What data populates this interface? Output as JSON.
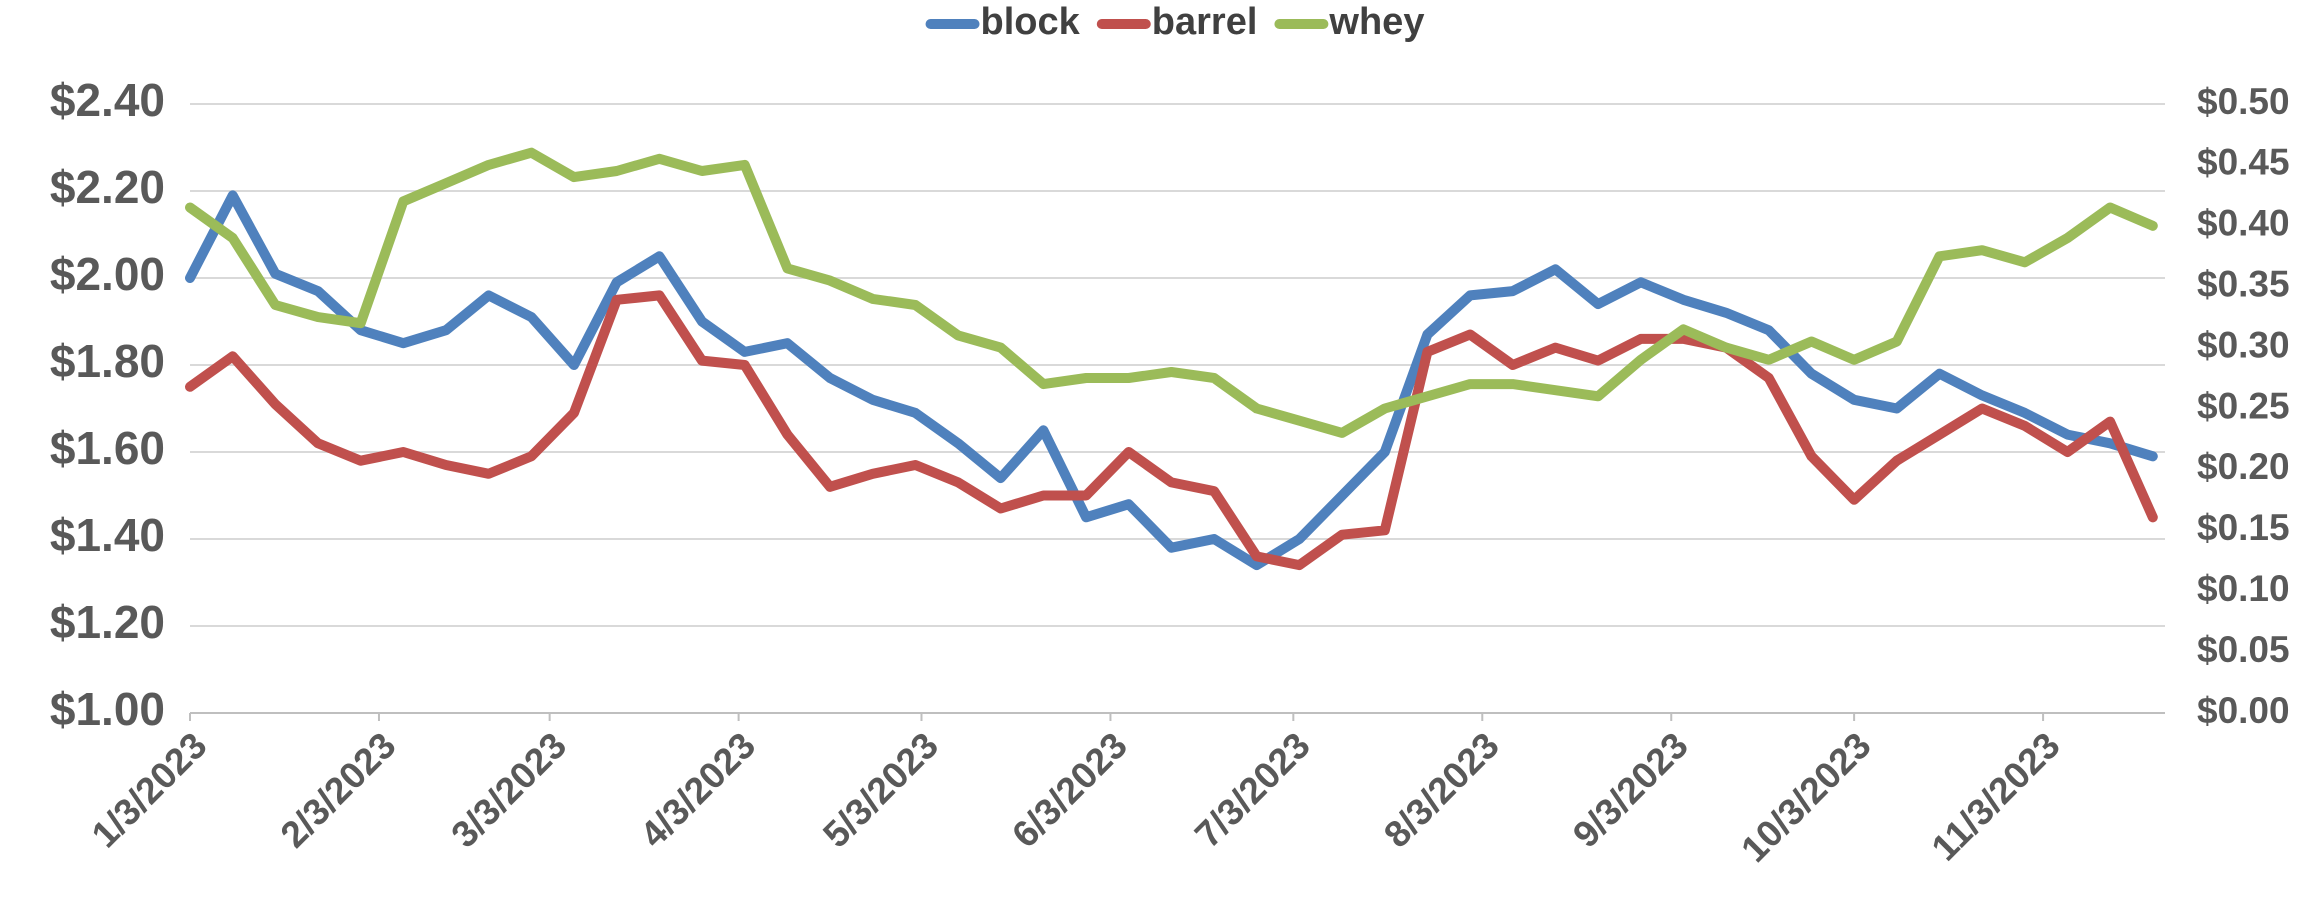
{
  "chart_data": {
    "type": "line",
    "x": [
      "1/3/2023",
      "1/10/2023",
      "1/17/2023",
      "1/24/2023",
      "1/31/2023",
      "2/7/2023",
      "2/14/2023",
      "2/21/2023",
      "2/28/2023",
      "3/7/2023",
      "3/14/2023",
      "3/21/2023",
      "3/28/2023",
      "4/4/2023",
      "4/11/2023",
      "4/18/2023",
      "4/25/2023",
      "5/2/2023",
      "5/9/2023",
      "5/16/2023",
      "5/23/2023",
      "5/30/2023",
      "6/6/2023",
      "6/13/2023",
      "6/20/2023",
      "6/27/2023",
      "7/4/2023",
      "7/11/2023",
      "7/18/2023",
      "7/25/2023",
      "8/1/2023",
      "8/8/2023",
      "8/15/2023",
      "8/22/2023",
      "8/29/2023",
      "9/5/2023",
      "9/12/2023",
      "9/19/2023",
      "9/26/2023",
      "10/3/2023",
      "10/10/2023",
      "10/17/2023",
      "10/24/2023",
      "10/31/2023",
      "11/7/2023",
      "11/14/2023",
      "11/21/2023"
    ],
    "series": [
      {
        "name": "block",
        "color": "#4f81bd",
        "values": [
          2.0,
          2.19,
          2.01,
          1.97,
          1.88,
          1.85,
          1.88,
          1.96,
          1.91,
          1.8,
          1.99,
          2.05,
          1.9,
          1.83,
          1.85,
          1.77,
          1.72,
          1.69,
          1.62,
          1.54,
          1.65,
          1.45,
          1.48,
          1.38,
          1.4,
          1.34,
          1.4,
          1.5,
          1.6,
          1.87,
          1.96,
          1.97,
          2.02,
          1.94,
          1.99,
          1.95,
          1.92,
          1.88,
          1.78,
          1.72,
          1.7,
          1.78,
          1.73,
          1.69,
          1.64,
          1.62,
          1.59
        ]
      },
      {
        "name": "barrel",
        "color": "#c0504d",
        "values": [
          1.75,
          1.82,
          1.71,
          1.62,
          1.58,
          1.6,
          1.57,
          1.55,
          1.59,
          1.69,
          1.95,
          1.96,
          1.81,
          1.8,
          1.64,
          1.52,
          1.55,
          1.57,
          1.53,
          1.47,
          1.5,
          1.5,
          1.6,
          1.53,
          1.51,
          1.36,
          1.34,
          1.41,
          1.42,
          1.83,
          1.87,
          1.8,
          1.84,
          1.81,
          1.86,
          1.86,
          1.84,
          1.77,
          1.59,
          1.49,
          1.58,
          1.64,
          1.7,
          1.66,
          1.6,
          1.67,
          1.45
        ]
      },
      {
        "name": "whey",
        "color": "#9bbb59",
        "axis": "y2",
        "values": [
          0.415,
          0.39,
          0.335,
          0.325,
          0.32,
          0.42,
          0.435,
          0.45,
          0.46,
          0.44,
          0.445,
          0.455,
          0.445,
          0.45,
          0.365,
          0.355,
          0.34,
          0.335,
          0.31,
          0.3,
          0.27,
          0.275,
          0.275,
          0.28,
          0.275,
          0.25,
          0.24,
          0.23,
          0.25,
          0.26,
          0.27,
          0.27,
          0.265,
          0.26,
          0.29,
          0.315,
          0.3,
          0.29,
          0.305,
          0.29,
          0.305,
          0.375,
          0.38,
          0.37,
          0.39,
          0.415,
          0.4
        ]
      }
    ],
    "xlim": [
      "1/3/2023",
      "11/23/2023"
    ],
    "xticks": [
      "1/3/2023",
      "2/3/2023",
      "3/3/2023",
      "4/3/2023",
      "5/3/2023",
      "6/3/2023",
      "7/3/2023",
      "8/3/2023",
      "9/3/2023",
      "10/3/2023",
      "11/3/2023"
    ],
    "ylim": [
      1.0,
      2.4
    ],
    "yticks": [
      {
        "value": 1.0,
        "label": "$1.00"
      },
      {
        "value": 1.2,
        "label": "$1.20"
      },
      {
        "value": 1.4,
        "label": "$1.40"
      },
      {
        "value": 1.6,
        "label": "$1.60"
      },
      {
        "value": 1.8,
        "label": "$1.80"
      },
      {
        "value": 2.0,
        "label": "$2.00"
      },
      {
        "value": 2.2,
        "label": "$2.20"
      },
      {
        "value": 2.4,
        "label": "$2.40"
      }
    ],
    "y2lim": [
      0.0,
      0.5
    ],
    "y2ticks": [
      {
        "value": 0.0,
        "label": "$0.00"
      },
      {
        "value": 0.05,
        "label": "$0.05"
      },
      {
        "value": 0.1,
        "label": "$0.10"
      },
      {
        "value": 0.15,
        "label": "$0.15"
      },
      {
        "value": 0.2,
        "label": "$0.20"
      },
      {
        "value": 0.25,
        "label": "$0.25"
      },
      {
        "value": 0.3,
        "label": "$0.30"
      },
      {
        "value": 0.35,
        "label": "$0.35"
      },
      {
        "value": 0.4,
        "label": "$0.40"
      },
      {
        "value": 0.45,
        "label": "$0.45"
      },
      {
        "value": 0.5,
        "label": "$0.50"
      }
    ],
    "grid": true,
    "legend": "top"
  }
}
